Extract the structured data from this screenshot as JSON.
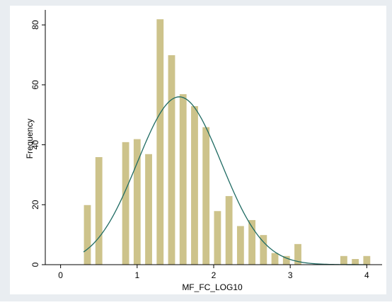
{
  "chart_data": {
    "type": "bar",
    "subtype": "histogram",
    "xlabel": "MF_FC_LOG10",
    "ylabel": "Frequency",
    "xlim": [
      -0.2,
      4.2
    ],
    "ylim": [
      0,
      85
    ],
    "xticks": [
      0,
      1,
      2,
      3,
      4
    ],
    "yticks": [
      0,
      20,
      40,
      60,
      80
    ],
    "grid": false,
    "bin_width": 0.1,
    "bins": [
      {
        "start": 0.3,
        "value": 20
      },
      {
        "start": 0.4,
        "value": 0
      },
      {
        "start": 0.45,
        "value": 36
      },
      {
        "start": 0.8,
        "value": 41
      },
      {
        "start": 0.95,
        "value": 42
      },
      {
        "start": 1.1,
        "value": 37
      },
      {
        "start": 1.25,
        "value": 82
      },
      {
        "start": 1.4,
        "value": 70
      },
      {
        "start": 1.55,
        "value": 57
      },
      {
        "start": 1.7,
        "value": 53
      },
      {
        "start": 1.85,
        "value": 46
      },
      {
        "start": 2.0,
        "value": 18
      },
      {
        "start": 2.15,
        "value": 23
      },
      {
        "start": 2.3,
        "value": 13
      },
      {
        "start": 2.45,
        "value": 15
      },
      {
        "start": 2.6,
        "value": 10
      },
      {
        "start": 2.75,
        "value": 4
      },
      {
        "start": 2.9,
        "value": 3
      },
      {
        "start": 3.05,
        "value": 7
      },
      {
        "start": 3.65,
        "value": 3
      },
      {
        "start": 3.8,
        "value": 2
      },
      {
        "start": 3.95,
        "value": 3
      }
    ],
    "normal_curve": {
      "mean": 1.55,
      "sd": 0.55,
      "peak": 56
    },
    "colors": {
      "bar_fill": "#cdc38b",
      "bar_stroke": "#ffffff",
      "curve": "#1f6b63",
      "outer_background": "#e9edf1",
      "plot_background": "#ffffff"
    }
  }
}
